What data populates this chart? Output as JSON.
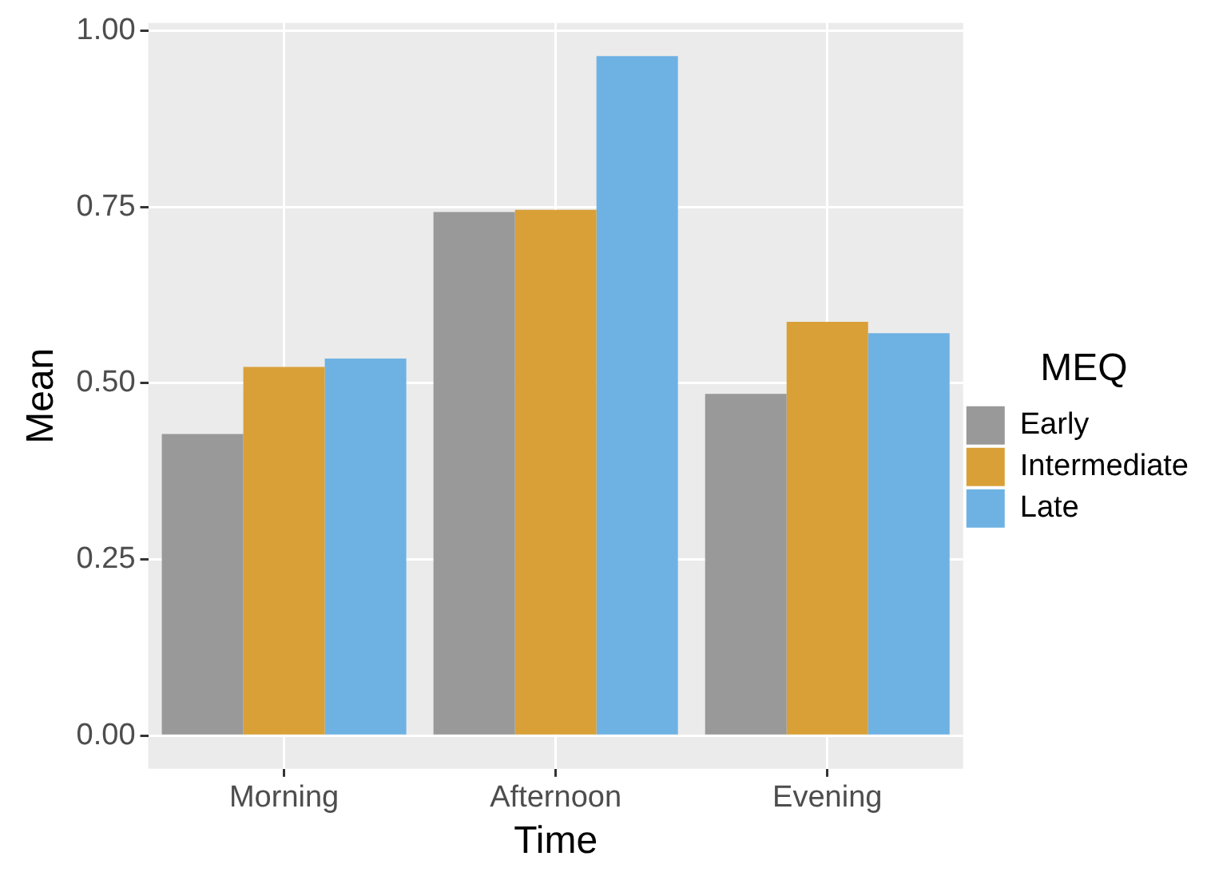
{
  "chart_data": {
    "type": "bar",
    "xlabel": "Time",
    "ylabel": "Mean",
    "legend_title": "MEQ",
    "categories": [
      "Morning",
      "Afternoon",
      "Evening"
    ],
    "series": [
      {
        "name": "Early",
        "color": "#999999",
        "values": [
          0.428,
          0.743,
          0.485
        ]
      },
      {
        "name": "Intermediate",
        "color": "#d9a038",
        "values": [
          0.523,
          0.746,
          0.587
        ]
      },
      {
        "name": "Late",
        "color": "#6eb2e3",
        "values": [
          0.535,
          0.964,
          0.571
        ]
      }
    ],
    "ylim": [
      -0.047,
      1.011
    ],
    "yticks": [
      {
        "value": 0,
        "label": "0.00"
      },
      {
        "value": 0.25,
        "label": "0.25"
      },
      {
        "value": 0.5,
        "label": "0.50"
      },
      {
        "value": 0.75,
        "label": "0.75"
      },
      {
        "value": 1,
        "label": "1.00"
      }
    ],
    "grid": true,
    "legend": "right"
  }
}
